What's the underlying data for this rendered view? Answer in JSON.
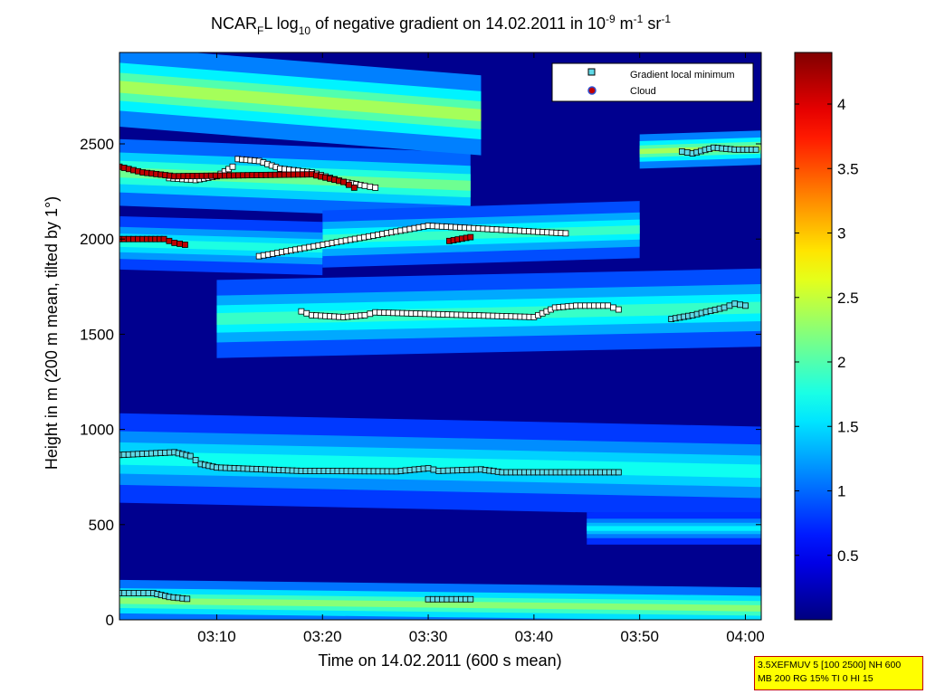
{
  "chart_data": {
    "type": "heatmap",
    "title_parts": [
      "NCAR",
      "F",
      "L log",
      "10",
      " of negative gradient on 14.02.2011 in 10",
      "-9",
      " m",
      "-1",
      " sr",
      "-1"
    ],
    "xlabel": "Time on 14.02.2011 (600 s mean)",
    "ylabel": "Height in m (200 m mean, tilted by 1°)",
    "x_ticks": [
      "03:10",
      "03:20",
      "03:30",
      "03:40",
      "03:50",
      "04:00"
    ],
    "x_tick_minutes": [
      10,
      20,
      30,
      40,
      50,
      60
    ],
    "xlim_minutes": [
      0.8,
      61.5
    ],
    "y_ticks": [
      "0",
      "500",
      "1000",
      "1500",
      "2000",
      "2500"
    ],
    "y_tick_values": [
      0,
      500,
      1000,
      1500,
      2000,
      2500
    ],
    "ylim": [
      0,
      2980
    ],
    "colorbar_ticks": [
      "0.5",
      "1",
      "1.5",
      "2",
      "2.5",
      "3",
      "3.5",
      "4"
    ],
    "colorbar_values": [
      0.5,
      1,
      1.5,
      2,
      2.5,
      3,
      3.5,
      4
    ],
    "colorbar_range": [
      0,
      4.4
    ],
    "colormap": "jet",
    "legend": {
      "placement": "top-right",
      "entries": [
        {
          "label": "Gradient local minimum",
          "marker": "square",
          "color": "#5fd9e6"
        },
        {
          "label": "Cloud",
          "marker": "circle",
          "color": "#c00000",
          "edge": "#3050d0"
        }
      ]
    },
    "bands": [
      {
        "t0": 0.8,
        "t1": 61.5,
        "h0": 560,
        "h1": 1030,
        "c0": 850,
        "c1": 780,
        "v": 1.45
      },
      {
        "t0": 0.8,
        "t1": 61.5,
        "h0": 0,
        "h1": 220,
        "c0": 100,
        "c1": 60,
        "v": 1.9
      },
      {
        "t0": 45,
        "t1": 61.5,
        "h0": 390,
        "h1": 560,
        "c0": 480,
        "c1": 480,
        "v": 1.35
      },
      {
        "t0": 0.8,
        "t1": 34,
        "h0": 2150,
        "h1": 2500,
        "c0": 2350,
        "c1": 2280,
        "v": 1.8
      },
      {
        "t0": 0.8,
        "t1": 35,
        "h0": 2560,
        "h1": 2980,
        "c0": 2800,
        "c1": 2650,
        "v": 2.0
      },
      {
        "t0": 50,
        "t1": 61.5,
        "h0": 2380,
        "h1": 2560,
        "c0": 2460,
        "c1": 2480,
        "v": 2.0
      },
      {
        "t0": 20,
        "t1": 50,
        "h0": 1850,
        "h1": 2150,
        "c0": 2000,
        "c1": 2050,
        "v": 1.6
      },
      {
        "t0": 10,
        "t1": 61.5,
        "h0": 1350,
        "h1": 1760,
        "c0": 1580,
        "c1": 1640,
        "v": 1.6
      },
      {
        "t0": 0.8,
        "t1": 20,
        "h0": 1800,
        "h1": 2080,
        "c0": 1980,
        "c1": 1950,
        "v": 1.5
      }
    ],
    "series": [
      {
        "name": "Gradient local minimum",
        "marker": "square",
        "style": "band",
        "points": [
          [
            0.8,
            866
          ],
          [
            6.0,
            880
          ],
          [
            7.5,
            860
          ],
          [
            8.5,
            818
          ],
          [
            10,
            800
          ],
          [
            18,
            782
          ],
          [
            27,
            780
          ],
          [
            30,
            796
          ],
          [
            31,
            782
          ],
          [
            35,
            790
          ],
          [
            37,
            775
          ],
          [
            48,
            775
          ]
        ]
      },
      {
        "name": "Gradient local minimum",
        "marker": "square",
        "style": "band",
        "points": [
          [
            0.8,
            140
          ],
          [
            4,
            140
          ],
          [
            5.5,
            120
          ],
          [
            7.2,
            110
          ]
        ]
      },
      {
        "name": "Gradient local minimum",
        "marker": "square",
        "style": "band",
        "points": [
          [
            30,
            108
          ],
          [
            34,
            108
          ]
        ]
      },
      {
        "name": "Gradient local minimum",
        "marker": "square",
        "style": "white",
        "points": [
          [
            5.5,
            2320
          ],
          [
            8,
            2310
          ],
          [
            10,
            2330
          ],
          [
            11.5,
            2380
          ],
          [
            12,
            2420
          ],
          [
            14,
            2410
          ],
          [
            16,
            2370
          ],
          [
            19,
            2350
          ],
          [
            22,
            2300
          ],
          [
            24,
            2280
          ],
          [
            25,
            2270
          ]
        ]
      },
      {
        "name": "Gradient local minimum",
        "marker": "square",
        "style": "white",
        "points": [
          [
            14,
            1910
          ],
          [
            30,
            2070
          ],
          [
            43,
            2030
          ]
        ]
      },
      {
        "name": "Gradient local minimum",
        "marker": "square",
        "style": "white",
        "points": [
          [
            18,
            1620
          ],
          [
            19,
            1600
          ],
          [
            22,
            1590
          ],
          [
            24,
            1600
          ],
          [
            25,
            1615
          ],
          [
            40,
            1590
          ],
          [
            42,
            1640
          ],
          [
            44,
            1650
          ],
          [
            47,
            1650
          ],
          [
            48,
            1630
          ]
        ]
      },
      {
        "name": "Gradient local minimum",
        "marker": "square",
        "style": "band",
        "points": [
          [
            53,
            1580
          ],
          [
            55,
            1600
          ],
          [
            58,
            1640
          ],
          [
            59,
            1660
          ],
          [
            60,
            1650
          ]
        ]
      },
      {
        "name": "Gradient local minimum",
        "marker": "square",
        "style": "band",
        "points": [
          [
            54,
            2460
          ],
          [
            55,
            2450
          ],
          [
            57,
            2480
          ],
          [
            59,
            2470
          ],
          [
            61,
            2470
          ]
        ]
      },
      {
        "name": "Cloud",
        "marker": "square",
        "style": "cloud",
        "points": [
          [
            0.8,
            2380
          ],
          [
            3,
            2350
          ],
          [
            6,
            2330
          ],
          [
            19,
            2340
          ],
          [
            22,
            2300
          ],
          [
            23,
            2270
          ]
        ]
      },
      {
        "name": "Cloud",
        "marker": "square",
        "style": "cloud",
        "points": [
          [
            0.8,
            2000
          ],
          [
            3,
            2000
          ],
          [
            5,
            2000
          ],
          [
            6,
            1980
          ],
          [
            7,
            1970
          ]
        ]
      },
      {
        "name": "Cloud",
        "marker": "square",
        "style": "cloud",
        "points": [
          [
            32,
            1990
          ],
          [
            34,
            2010
          ]
        ]
      }
    ],
    "info_lines": [
      "3.5XEFMUV 5 [100 2500] NH 600",
      "MB 200 RG 15% TI 0 HI 15"
    ]
  }
}
